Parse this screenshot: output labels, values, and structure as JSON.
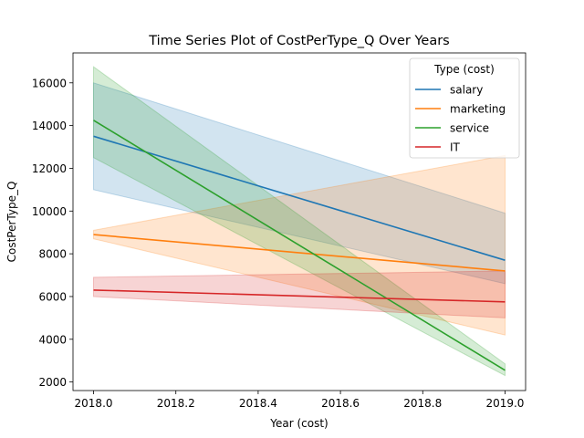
{
  "chart_data": {
    "type": "line",
    "title": "Time Series Plot of CostPerType_Q Over Years",
    "xlabel": "Year (cost)",
    "ylabel": "CostPerType_Q",
    "xlim": [
      2017.95,
      2019.05
    ],
    "ylim": [
      1600,
      17400
    ],
    "xticks": [
      2018.0,
      2018.2,
      2018.4,
      2018.6,
      2018.8,
      2019.0
    ],
    "xtick_labels": [
      "2018.0",
      "2018.2",
      "2018.4",
      "2018.6",
      "2018.8",
      "2019.0"
    ],
    "yticks": [
      2000,
      4000,
      6000,
      8000,
      10000,
      12000,
      14000,
      16000
    ],
    "ytick_labels": [
      "2000",
      "4000",
      "6000",
      "8000",
      "10000",
      "12000",
      "14000",
      "16000"
    ],
    "grid": false,
    "legend": {
      "title": "Type (cost)",
      "placement": "top-right"
    },
    "x": [
      2018.0,
      2019.0
    ],
    "series": [
      {
        "name": "salary",
        "color": "#1f77b4",
        "values": [
          13500,
          7700
        ],
        "ci_low": [
          11000,
          6600
        ],
        "ci_high": [
          16000,
          9900
        ]
      },
      {
        "name": "marketing",
        "color": "#ff7f0e",
        "values": [
          8900,
          7200
        ],
        "ci_low": [
          8700,
          4200
        ],
        "ci_high": [
          9100,
          12600
        ]
      },
      {
        "name": "service",
        "color": "#2ca02c",
        "values": [
          14250,
          2550
        ],
        "ci_low": [
          12500,
          2300
        ],
        "ci_high": [
          16750,
          2850
        ]
      },
      {
        "name": "IT",
        "color": "#d62728",
        "values": [
          6300,
          5750
        ],
        "ci_low": [
          6000,
          5000
        ],
        "ci_high": [
          6900,
          7200
        ]
      }
    ]
  }
}
